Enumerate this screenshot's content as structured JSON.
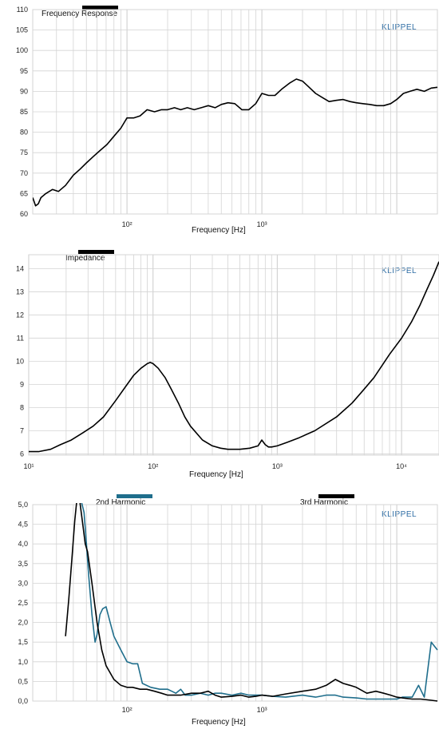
{
  "colors": {
    "black_series": "#000000",
    "teal_series": "#1f6e8c",
    "brand": "#2e6da4",
    "grid": "#d4d4d4"
  },
  "chart_data": [
    {
      "type": "line",
      "brand": "KLIPPEL",
      "xlabel": "Frequency  [Hz]",
      "x_scale": "log",
      "xlim": [
        20,
        20000
      ],
      "ylim": [
        60,
        110
      ],
      "yticks": [
        "60",
        "65",
        "70",
        "75",
        "80",
        "85",
        "90",
        "95",
        "100",
        "105",
        "110"
      ],
      "xticks": [
        {
          "value": 100,
          "label": "10²"
        },
        {
          "value": 1000,
          "label": "10³"
        }
      ],
      "grid": true,
      "series": [
        {
          "name": "Frequency Response",
          "color": "#000000",
          "x": [
            20,
            21,
            22,
            23,
            25,
            28,
            31,
            35,
            40,
            45,
            50,
            56,
            63,
            71,
            80,
            90,
            100,
            112,
            125,
            141,
            160,
            180,
            200,
            225,
            250,
            280,
            315,
            355,
            400,
            450,
            500,
            560,
            630,
            710,
            800,
            900,
            1000,
            1120,
            1250,
            1400,
            1600,
            1800,
            2000,
            2240,
            2500,
            2800,
            3150,
            3550,
            4000,
            4500,
            5000,
            5600,
            6300,
            7100,
            8000,
            9000,
            10000,
            11200,
            12500,
            14100,
            16000,
            18000,
            20000
          ],
          "y": [
            64,
            62,
            62.5,
            64,
            65,
            66,
            65.5,
            67,
            69.5,
            71,
            72.5,
            74,
            75.5,
            77,
            79,
            81,
            83.5,
            83.5,
            84,
            85.5,
            85,
            85.5,
            85.5,
            86,
            85.5,
            86,
            85.5,
            86,
            86.5,
            86,
            86.8,
            87.2,
            87,
            85.5,
            85.5,
            87,
            89.5,
            89,
            89,
            90.5,
            92,
            93,
            92.5,
            91,
            89.5,
            88.5,
            87.5,
            87.8,
            88,
            87.5,
            87.2,
            87,
            86.8,
            86.5,
            86.5,
            87,
            88,
            89.5,
            90,
            90.5,
            90,
            90.8,
            91
          ]
        }
      ]
    },
    {
      "type": "line",
      "brand": "KLIPPEL",
      "xlabel": "Frequency  [Hz]",
      "x_scale": "log",
      "xlim": [
        10,
        20000
      ],
      "ylim": [
        5.95,
        14.6
      ],
      "yticks": [
        "6",
        "7",
        "8",
        "9",
        "10",
        "11",
        "12",
        "13",
        "14"
      ],
      "xticks": [
        {
          "value": 10,
          "label": "10¹"
        },
        {
          "value": 100,
          "label": "10²"
        },
        {
          "value": 1000,
          "label": "10³"
        },
        {
          "value": 10000,
          "label": "10⁴"
        }
      ],
      "grid": true,
      "series": [
        {
          "name": "Impedance",
          "color": "#000000",
          "x": [
            10,
            12,
            15,
            18,
            22,
            27,
            33,
            40,
            50,
            60,
            70,
            80,
            90,
            95,
            100,
            110,
            125,
            140,
            160,
            180,
            200,
            250,
            300,
            350,
            400,
            450,
            500,
            600,
            700,
            750,
            800,
            850,
            900,
            1000,
            1200,
            1500,
            2000,
            3000,
            4000,
            5000,
            6000,
            8000,
            10000,
            12000,
            14000,
            16000,
            18000,
            20000
          ],
          "y": [
            6.1,
            6.1,
            6.2,
            6.4,
            6.6,
            6.9,
            7.2,
            7.6,
            8.3,
            8.9,
            9.4,
            9.7,
            9.9,
            9.95,
            9.9,
            9.7,
            9.3,
            8.8,
            8.2,
            7.6,
            7.2,
            6.6,
            6.35,
            6.25,
            6.2,
            6.2,
            6.2,
            6.25,
            6.35,
            6.6,
            6.4,
            6.3,
            6.3,
            6.35,
            6.5,
            6.7,
            7.0,
            7.6,
            8.2,
            8.8,
            9.3,
            10.3,
            11.0,
            11.7,
            12.4,
            13.1,
            13.7,
            14.3
          ]
        }
      ]
    },
    {
      "type": "line",
      "brand": "KLIPPEL",
      "xlabel": "Frequency  [Hz]",
      "x_scale": "log",
      "xlim": [
        20,
        20000
      ],
      "ylim": [
        0,
        5.0
      ],
      "yticks": [
        "0,0",
        "0,5",
        "1,0",
        "1,5",
        "2,0",
        "2,5",
        "3,0",
        "3,5",
        "4,0",
        "4,5",
        "5,0"
      ],
      "xticks": [
        {
          "value": 100,
          "label": "10²"
        },
        {
          "value": 1000,
          "label": "10³"
        }
      ],
      "grid": true,
      "series": [
        {
          "name": "2nd Harmonic",
          "color": "#1f6e8c",
          "x": [
            45,
            48,
            50,
            52,
            55,
            58,
            60,
            63,
            66,
            70,
            75,
            80,
            90,
            100,
            110,
            120,
            130,
            150,
            175,
            200,
            230,
            250,
            270,
            300,
            350,
            400,
            450,
            500,
            600,
            700,
            800,
            900,
            1000,
            1200,
            1500,
            2000,
            2500,
            3000,
            3500,
            4000,
            5000,
            6000,
            7000,
            8000,
            9000,
            10000,
            11000,
            13000,
            14500,
            16000,
            18000,
            20000
          ],
          "y": [
            5.2,
            4.8,
            4.0,
            3.2,
            2.2,
            1.5,
            1.7,
            2.2,
            2.35,
            2.4,
            2.0,
            1.65,
            1.3,
            1.0,
            0.95,
            0.95,
            0.45,
            0.35,
            0.3,
            0.3,
            0.2,
            0.3,
            0.15,
            0.15,
            0.2,
            0.15,
            0.2,
            0.2,
            0.15,
            0.2,
            0.15,
            0.15,
            0.15,
            0.12,
            0.1,
            0.15,
            0.1,
            0.15,
            0.15,
            0.1,
            0.08,
            0.05,
            0.05,
            0.05,
            0.05,
            0.05,
            0.1,
            0.1,
            0.4,
            0.1,
            1.5,
            1.3
          ]
        },
        {
          "name": "3rd Harmonic",
          "color": "#000000",
          "x": [
            35,
            37,
            39,
            41,
            43,
            44,
            45,
            47,
            49,
            51,
            55,
            60,
            65,
            70,
            80,
            90,
            100,
            110,
            125,
            140,
            160,
            180,
            200,
            250,
            300,
            350,
            400,
            450,
            500,
            600,
            700,
            800,
            900,
            1000,
            1200,
            1500,
            2000,
            2500,
            3000,
            3500,
            4000,
            4500,
            5000,
            6000,
            7000,
            8000,
            9000,
            10000,
            11000,
            13000,
            15000,
            18000,
            20000
          ],
          "y": [
            1.65,
            2.6,
            3.6,
            4.6,
            5.3,
            5.5,
            5.0,
            4.5,
            4.0,
            3.8,
            3.0,
            2.0,
            1.3,
            0.9,
            0.55,
            0.4,
            0.35,
            0.35,
            0.3,
            0.3,
            0.25,
            0.2,
            0.15,
            0.15,
            0.2,
            0.2,
            0.25,
            0.15,
            0.1,
            0.12,
            0.15,
            0.1,
            0.12,
            0.15,
            0.12,
            0.18,
            0.25,
            0.3,
            0.4,
            0.55,
            0.45,
            0.4,
            0.35,
            0.2,
            0.25,
            0.2,
            0.15,
            0.1,
            0.08,
            0.05,
            0.05,
            0.02,
            0.0
          ]
        }
      ]
    }
  ]
}
